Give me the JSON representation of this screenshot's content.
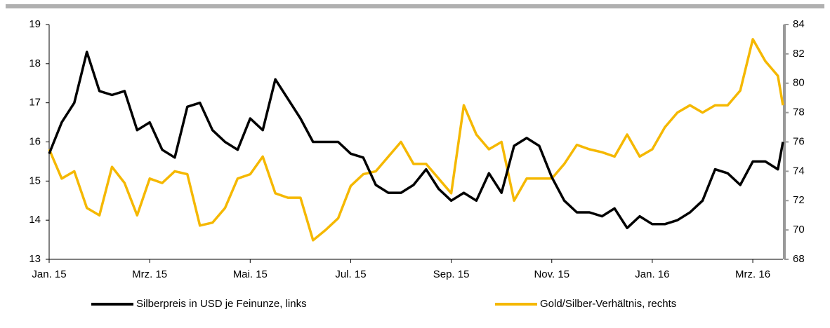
{
  "chart_data": {
    "type": "line",
    "xlim": [
      0,
      14.6
    ],
    "xticks": [
      {
        "value": 0,
        "label": "Jan. 15"
      },
      {
        "value": 2,
        "label": "Mrz. 15"
      },
      {
        "value": 4,
        "label": "Mai. 15"
      },
      {
        "value": 6,
        "label": "Jul. 15"
      },
      {
        "value": 8,
        "label": "Sep. 15"
      },
      {
        "value": 10,
        "label": "Nov. 15"
      },
      {
        "value": 12,
        "label": "Jan. 16"
      },
      {
        "value": 14,
        "label": "Mrz. 16"
      }
    ],
    "ylim": [
      13,
      19
    ],
    "yticks": [
      13,
      14,
      15,
      16,
      17,
      18,
      19
    ],
    "y2lim": [
      68,
      84
    ],
    "y2ticks": [
      68,
      70,
      72,
      74,
      76,
      78,
      80,
      82,
      84
    ],
    "x": [
      0,
      0.25,
      0.5,
      0.75,
      1,
      1.25,
      1.5,
      1.75,
      2,
      2.25,
      2.5,
      2.75,
      3,
      3.25,
      3.5,
      3.75,
      4,
      4.25,
      4.5,
      4.75,
      5,
      5.25,
      5.5,
      5.75,
      6,
      6.25,
      6.5,
      6.75,
      7,
      7.25,
      7.5,
      7.75,
      8,
      8.25,
      8.5,
      8.75,
      9,
      9.25,
      9.5,
      9.75,
      10,
      10.25,
      10.5,
      10.75,
      11,
      11.25,
      11.5,
      11.75,
      12,
      12.25,
      12.5,
      12.75,
      13,
      13.25,
      13.5,
      13.75,
      14,
      14.25,
      14.5,
      14.6
    ],
    "series": [
      {
        "name": "Silberpreis in USD je Feinunze, links",
        "color": "#000000",
        "values": [
          15.7,
          16.5,
          17.0,
          18.3,
          17.3,
          17.2,
          17.3,
          16.3,
          16.5,
          15.8,
          15.6,
          16.9,
          17.0,
          16.3,
          16.0,
          15.8,
          16.6,
          16.3,
          17.6,
          17.1,
          16.6,
          16.0,
          16.0,
          16.0,
          15.7,
          15.6,
          14.9,
          14.7,
          14.7,
          14.9,
          15.3,
          14.8,
          14.5,
          14.7,
          14.5,
          15.2,
          14.7,
          15.9,
          16.1,
          15.9,
          15.1,
          14.5,
          14.2,
          14.2,
          14.1,
          14.3,
          13.8,
          14.1,
          13.9,
          13.9,
          14.0,
          14.2,
          14.5,
          15.3,
          15.2,
          14.9,
          15.5,
          15.5,
          15.3,
          16.0
        ]
      },
      {
        "name": "Gold/Silber-Verhältnis, rechts",
        "color": "#f5b800",
        "axis": "y2",
        "values": [
          75.5,
          73.5,
          74.0,
          71.5,
          71.0,
          74.3,
          73.2,
          71.0,
          73.5,
          73.2,
          74.0,
          73.8,
          70.3,
          70.5,
          71.5,
          73.5,
          73.8,
          75.0,
          72.5,
          72.2,
          72.2,
          69.3,
          70.0,
          70.8,
          73.0,
          73.8,
          74.0,
          75.0,
          76.0,
          74.5,
          74.5,
          73.5,
          72.5,
          78.5,
          76.5,
          75.5,
          76.0,
          72.0,
          73.5,
          73.5,
          73.5,
          74.5,
          75.8,
          75.5,
          75.3,
          75.0,
          76.5,
          75.0,
          75.5,
          77.0,
          78.0,
          78.5,
          78.0,
          78.5,
          78.5,
          79.5,
          83.0,
          81.5,
          80.5,
          78.5
        ]
      }
    ]
  }
}
